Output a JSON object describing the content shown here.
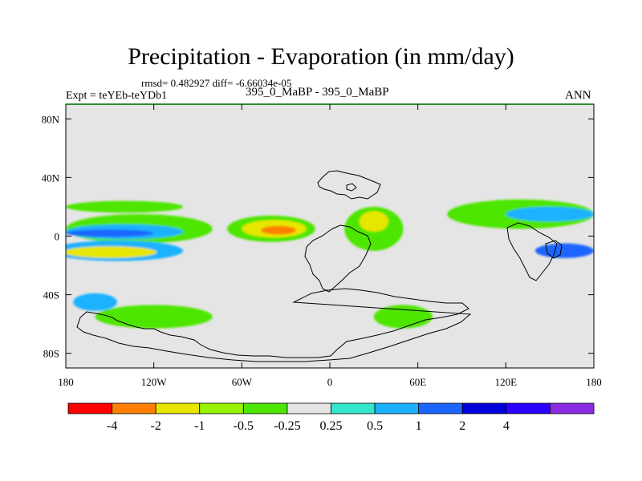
{
  "chart_data": {
    "type": "heatmap",
    "title": "Precipitation - Evaporation (in mm/day)",
    "stats_line": "rmsd= 0.482927 diff= -6.66034e-05",
    "left_subtitle": "Expt = teYEb-teYDb1",
    "center_subtitle": "395_0_MaBP - 395_0_MaBP",
    "right_subtitle": "ANN",
    "x_axis": {
      "range": [
        -180,
        180
      ],
      "ticks": [
        {
          "value": -180,
          "label": "180"
        },
        {
          "value": -120,
          "label": "120W"
        },
        {
          "value": -60,
          "label": "60W"
        },
        {
          "value": 0,
          "label": "0"
        },
        {
          "value": 60,
          "label": "60E"
        },
        {
          "value": 120,
          "label": "120E"
        },
        {
          "value": 180,
          "label": "180"
        }
      ]
    },
    "y_axis": {
      "range": [
        -90,
        90
      ],
      "ticks": [
        {
          "value": 80,
          "label": "80N"
        },
        {
          "value": 40,
          "label": "40N"
        },
        {
          "value": 0,
          "label": "0"
        },
        {
          "value": -40,
          "label": "40S"
        },
        {
          "value": -80,
          "label": "80S"
        }
      ]
    },
    "colorbar": {
      "colors": [
        "#ff0000",
        "#ff8000",
        "#e6e600",
        "#99f200",
        "#4de600",
        "#e5e5e5",
        "#33e6cc",
        "#1ab2ff",
        "#1a66ff",
        "#0000dd",
        "#2b00ff",
        "#8a2be2"
      ],
      "labels": [
        "-4",
        "-2",
        "-1",
        "-0.5",
        "-0.25",
        "0.25",
        "0.5",
        "1",
        "2",
        "4"
      ]
    },
    "field_blobs": [
      {
        "lon": -130,
        "lat": 5,
        "rlon": 50,
        "rlat": 10,
        "color": "#4de600"
      },
      {
        "lon": -140,
        "lat": 3,
        "rlon": 40,
        "rlat": 5,
        "color": "#1ab2ff"
      },
      {
        "lon": -150,
        "lat": 2,
        "rlon": 30,
        "rlat": 2.5,
        "color": "#1a66ff"
      },
      {
        "lon": -145,
        "lat": -10,
        "rlon": 45,
        "rlat": 7,
        "color": "#1ab2ff"
      },
      {
        "lon": -150,
        "lat": -11,
        "rlon": 32,
        "rlat": 4,
        "color": "#e6e600"
      },
      {
        "lon": -140,
        "lat": 20,
        "rlon": 40,
        "rlat": 4,
        "color": "#4de600"
      },
      {
        "lon": -40,
        "lat": 5,
        "rlon": 30,
        "rlat": 9,
        "color": "#4de600"
      },
      {
        "lon": -38,
        "lat": 5,
        "rlon": 22,
        "rlat": 6,
        "color": "#e6e600"
      },
      {
        "lon": -35,
        "lat": 4,
        "rlon": 12,
        "rlat": 3,
        "color": "#ff8000"
      },
      {
        "lon": 30,
        "lat": 5,
        "rlon": 20,
        "rlat": 15,
        "color": "#4de600"
      },
      {
        "lon": 30,
        "lat": 10,
        "rlon": 10,
        "rlat": 7,
        "color": "#e6e600"
      },
      {
        "lon": 130,
        "lat": 15,
        "rlon": 50,
        "rlat": 10,
        "color": "#4de600"
      },
      {
        "lon": 150,
        "lat": 15,
        "rlon": 30,
        "rlat": 5,
        "color": "#1ab2ff"
      },
      {
        "lon": 160,
        "lat": -10,
        "rlon": 20,
        "rlat": 5,
        "color": "#1a66ff"
      },
      {
        "lon": -120,
        "lat": -55,
        "rlon": 40,
        "rlat": 8,
        "color": "#4de600"
      },
      {
        "lon": 50,
        "lat": -55,
        "rlon": 20,
        "rlat": 8,
        "color": "#4de600"
      },
      {
        "lon": -160,
        "lat": -45,
        "rlon": 15,
        "rlat": 6,
        "color": "#1ab2ff"
      }
    ]
  }
}
